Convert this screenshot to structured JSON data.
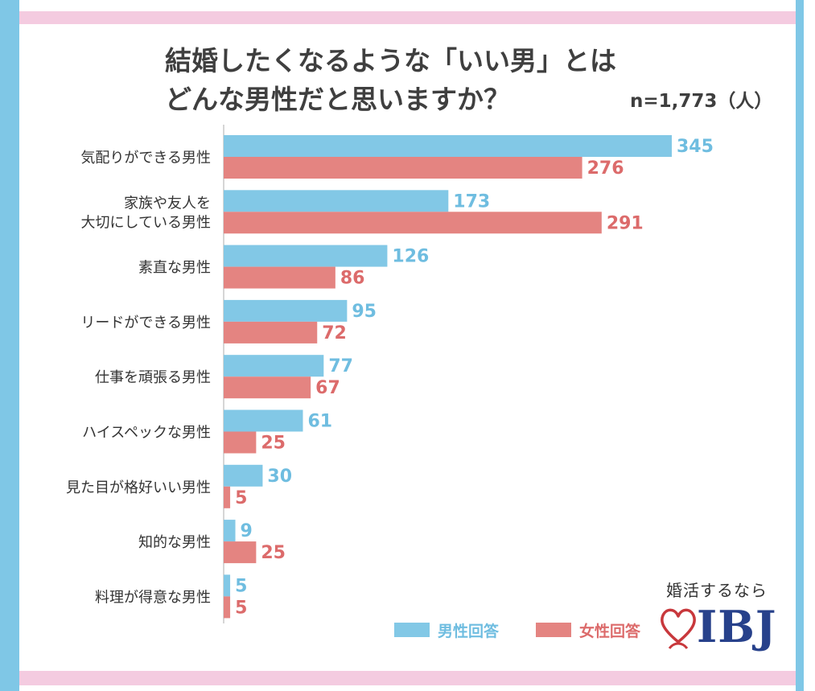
{
  "chart_data": {
    "type": "bar",
    "orientation": "horizontal",
    "title_lines": [
      "結婚したくなるような「いい男」とは",
      "どんな男性だと思いますか？"
    ],
    "sample_size": "n=1,773（人）",
    "categories": [
      [
        "気配りができる男性"
      ],
      [
        "家族や友人を",
        "大切にしている男性"
      ],
      [
        "素直な男性"
      ],
      [
        "リードができる男性"
      ],
      [
        "仕事を頑張る男性"
      ],
      [
        "ハイスペックな男性"
      ],
      [
        "見た目が格好いい男性"
      ],
      [
        "知的な男性"
      ],
      [
        "料理が得意な男性"
      ]
    ],
    "series": [
      {
        "name": "男性回答",
        "color": "#82c8e6",
        "label_color": "#6fbde0",
        "values": [
          345,
          173,
          126,
          95,
          77,
          61,
          30,
          9,
          5
        ]
      },
      {
        "name": "女性回答",
        "color": "#e48481",
        "label_color": "#dc6b6b",
        "values": [
          276,
          291,
          86,
          72,
          67,
          25,
          5,
          25,
          5
        ]
      }
    ],
    "xlim": [
      0,
      345
    ],
    "grid": false,
    "legend_position": "bottom-right"
  },
  "branding": {
    "tagline": "婚活するなら",
    "logo_text": "IBJ",
    "logo_color": "#27418b",
    "heart_color": "#c8383c"
  }
}
